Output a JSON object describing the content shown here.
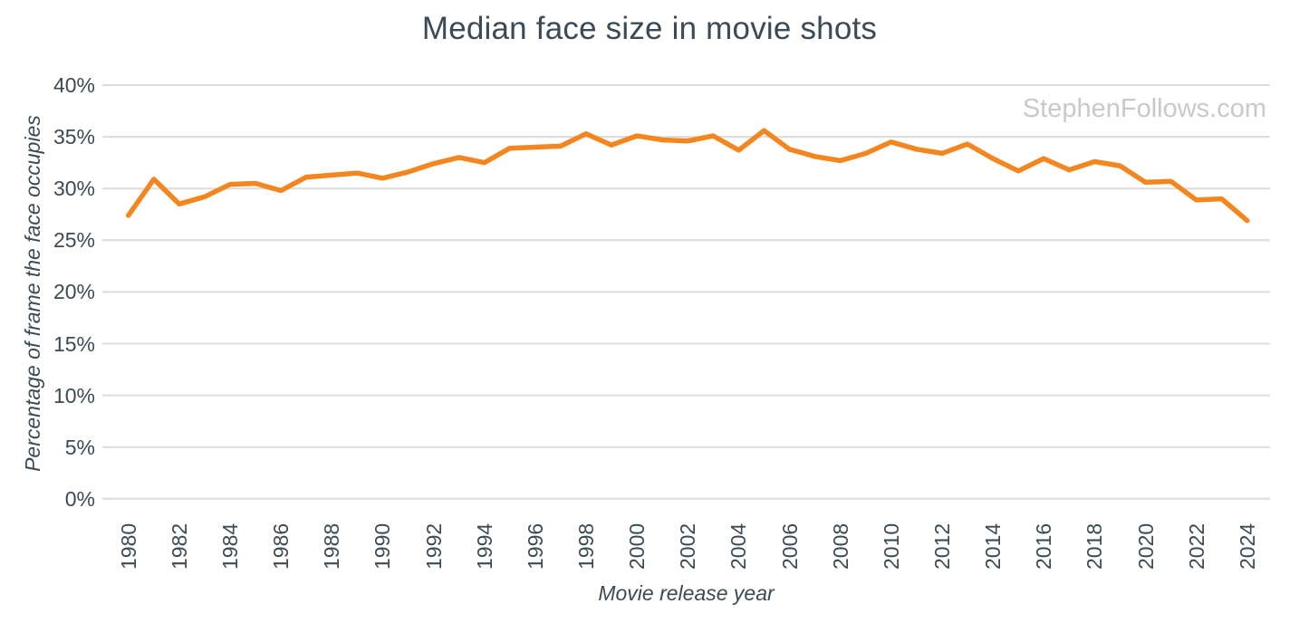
{
  "chart": {
    "title": "Median face size in movie shots",
    "watermark": "StephenFollows.com",
    "colors": {
      "line": "#f4861f",
      "text": "#3b4a54",
      "grid": "#dcdcdc",
      "watermark": "#c9c9c9",
      "background": "#ffffff"
    }
  },
  "chart_data": {
    "type": "line",
    "title": "Median face size in movie shots",
    "xlabel": "Movie release year",
    "ylabel": "Percentage of frame the face occupies",
    "watermark": "StephenFollows.com",
    "x": [
      1980,
      1981,
      1982,
      1983,
      1984,
      1985,
      1986,
      1987,
      1988,
      1989,
      1990,
      1991,
      1992,
      1993,
      1994,
      1995,
      1996,
      1997,
      1998,
      1999,
      2000,
      2001,
      2002,
      2003,
      2004,
      2005,
      2006,
      2007,
      2008,
      2009,
      2010,
      2011,
      2012,
      2013,
      2014,
      2015,
      2016,
      2017,
      2018,
      2019,
      2020,
      2021,
      2022,
      2023,
      2024
    ],
    "values": [
      27.4,
      30.9,
      28.5,
      29.2,
      30.4,
      30.5,
      29.8,
      31.1,
      31.3,
      31.5,
      31.0,
      31.6,
      32.4,
      33.0,
      32.5,
      33.9,
      34.0,
      34.1,
      35.3,
      34.2,
      35.1,
      34.7,
      34.6,
      35.1,
      33.7,
      35.6,
      33.8,
      33.1,
      32.7,
      33.4,
      34.5,
      33.8,
      33.4,
      34.3,
      32.9,
      31.7,
      32.9,
      31.8,
      32.6,
      32.2,
      30.6,
      30.7,
      28.9,
      29.0,
      26.9
    ],
    "ylim": [
      0,
      40
    ],
    "ytick_step": 5,
    "ytick_suffix": "%",
    "xtick_step": 2,
    "grid": "horizontal",
    "legend": "none",
    "line_color": "#f4861f"
  }
}
